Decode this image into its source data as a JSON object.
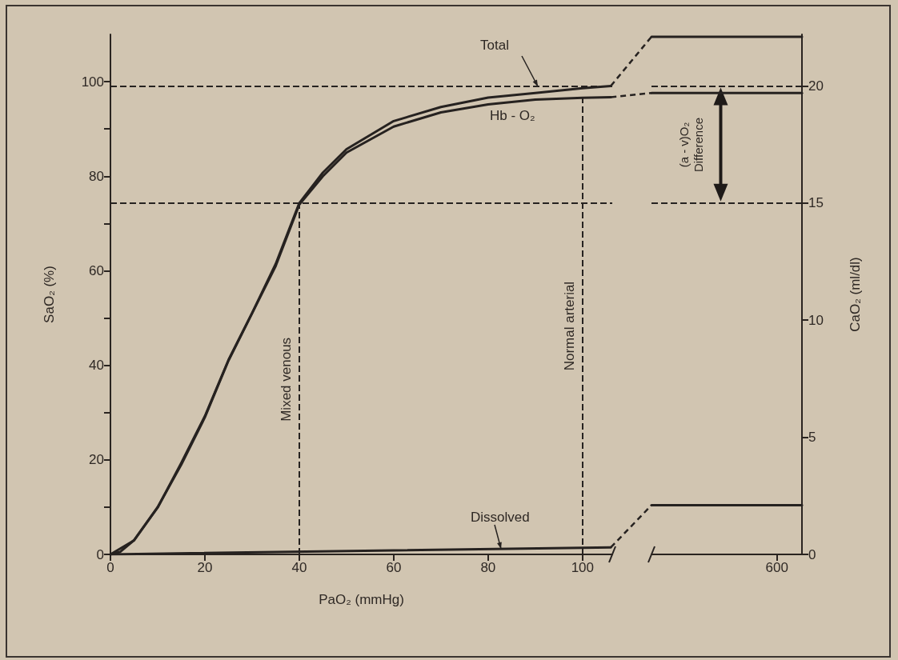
{
  "chart_data": [
    {
      "type": "line",
      "xlabel": "PaO₂ (mmHg)",
      "ylabel": "SaO₂ (%)",
      "xlim": [
        0,
        106.3
      ],
      "xticks": [
        0,
        20,
        40,
        60,
        80,
        100
      ],
      "ylim": [
        0,
        110
      ],
      "yticks": [
        0,
        {
          "value": 10,
          "label": null
        },
        20,
        {
          "value": 30,
          "label": null
        },
        40,
        {
          "value": 50,
          "label": null
        },
        60,
        {
          "value": 70,
          "label": null
        },
        80,
        {
          "value": 90,
          "label": null
        },
        100
      ],
      "y2lim": [
        0,
        22.2
      ],
      "marker": "none",
      "series": [
        {
          "name": "Total",
          "color": "#262220",
          "axis": "y2",
          "x": [
            0,
            5,
            10,
            15,
            20,
            25,
            30,
            35,
            40,
            45,
            50,
            60,
            70,
            80,
            90,
            100,
            106
          ],
          "values": [
            0,
            0.6,
            2.0,
            3.9,
            5.9,
            8.3,
            10.3,
            12.4,
            15.0,
            16.3,
            17.3,
            18.5,
            19.1,
            19.5,
            19.7,
            19.9,
            20.0
          ]
        },
        {
          "name": "Hb - O₂",
          "color": "#262220",
          "x": [
            0,
            2,
            5,
            10,
            15,
            20,
            25,
            30,
            35,
            40,
            45,
            50,
            60,
            70,
            80,
            90,
            100,
            106
          ],
          "values": [
            0,
            0.5,
            3,
            10,
            19,
            29,
            41,
            51,
            61,
            74,
            80,
            85,
            90.5,
            93.5,
            95.2,
            96.2,
            96.6,
            96.7
          ]
        },
        {
          "name": "Dissolved",
          "color": "#262220",
          "axis": "y2",
          "x": [
            0,
            106
          ],
          "values": [
            0,
            0.3
          ]
        }
      ],
      "ref_lines": [
        {
          "axis": "x",
          "value": 40,
          "label": "Mixed venous",
          "line_style": "dashed",
          "color": "#262220"
        },
        {
          "axis": "x",
          "value": 100,
          "label": "Normal arterial",
          "line_style": "dashed",
          "color": "#262220"
        },
        {
          "axis": "y2",
          "value": 15,
          "line_style": "dashed",
          "color": "#262220"
        },
        {
          "axis": "y2",
          "value": 20,
          "line_style": "dashed",
          "color": "#262220"
        }
      ]
    },
    {
      "type": "line",
      "y2label": "CaO₂ (ml/dl)",
      "categories": [
        null,
        null,
        null,
        null,
        null,
        "600",
        null
      ],
      "y2lim": [
        0,
        22.2
      ],
      "y2ticks": [
        0,
        5,
        10,
        15,
        20
      ],
      "marker": "none",
      "series": [
        {
          "color": "#262220",
          "axis": "y2",
          "values": [
            22.1,
            22.1,
            22.1,
            22.1,
            22.1,
            22.1,
            22.1
          ]
        },
        {
          "color": "#262220",
          "axis": "y2",
          "values": [
            19.7,
            19.7,
            19.7,
            19.7,
            19.7,
            19.7,
            19.7
          ]
        },
        {
          "color": "#262220",
          "axis": "y2",
          "values": [
            2.1,
            2.1,
            2.1,
            2.1,
            2.1,
            2.1,
            2.1
          ]
        }
      ],
      "ref_lines": [
        {
          "axis": "y2",
          "value": 15,
          "line_style": "dashed",
          "color": "#262220"
        },
        {
          "axis": "y2",
          "value": 20,
          "line_style": "dashed",
          "color": "#262220"
        }
      ],
      "annotations": [
        "(a - v)O₂ Difference"
      ]
    }
  ]
}
